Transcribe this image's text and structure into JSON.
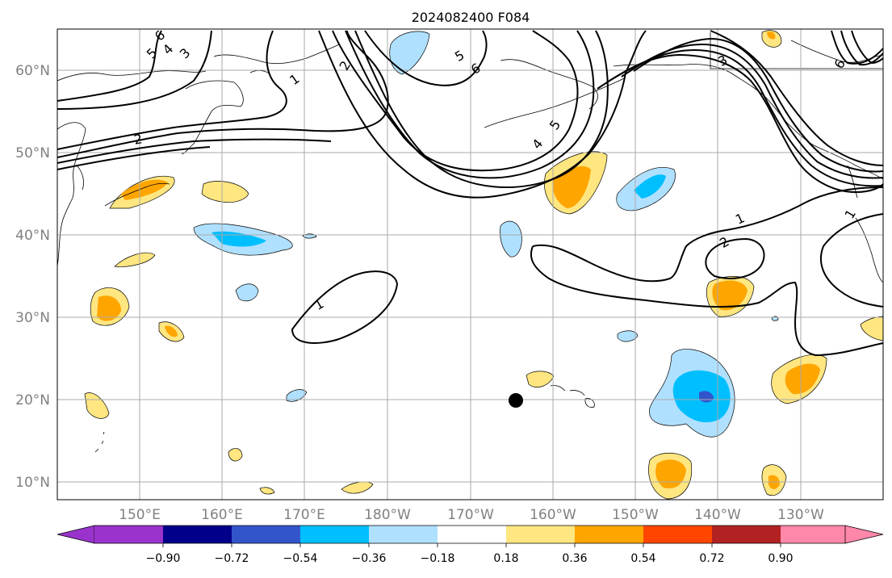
{
  "map": {
    "title": "2024082400 F084",
    "lat_labels": [
      "60°N",
      "50°N",
      "40°N",
      "30°N",
      "20°N",
      "10°N"
    ],
    "lon_labels": [
      "150°E",
      "160°E",
      "170°E",
      "180°W",
      "170°W",
      "160°W",
      "150°W",
      "140°W",
      "130°W"
    ],
    "contour_labels": [
      "1",
      "2",
      "3",
      "4",
      "5",
      "6"
    ],
    "colorbar": {
      "tick_labels": [
        "−0.90",
        "−0.72",
        "−0.54",
        "−0.36",
        "−0.18",
        "0.18",
        "0.36",
        "0.54",
        "0.72",
        "0.90"
      ],
      "colors": [
        "#9933cc",
        "#00008b",
        "#3355cc",
        "#00bfff",
        "#b0e0ff",
        "#ffffff",
        "#ffe680",
        "#ffa500",
        "#ff4500",
        "#b22222",
        "#ff88aa"
      ]
    },
    "marker_label": ""
  }
}
